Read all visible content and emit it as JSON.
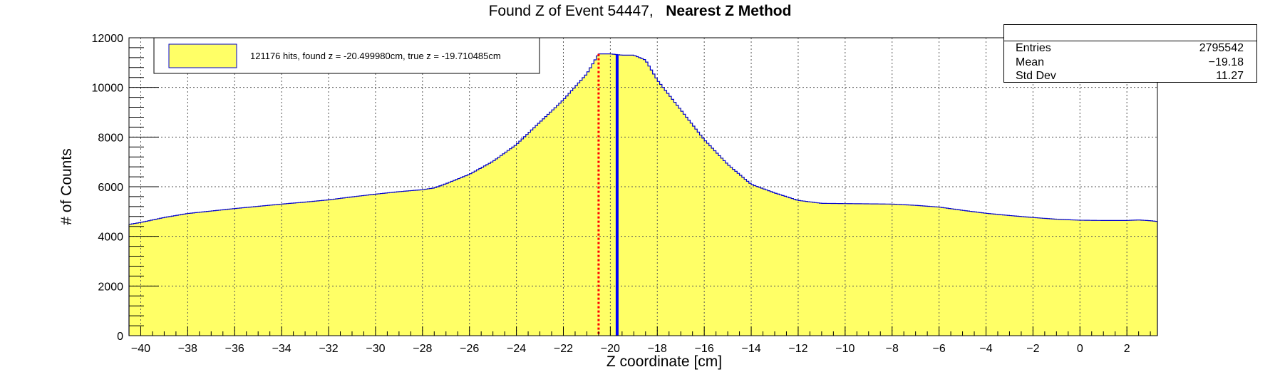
{
  "title": {
    "main": "Found Z of Event 54447,",
    "method": "Nearest Z Method"
  },
  "stats": {
    "rows": [
      {
        "label": "Entries",
        "value": "2795542"
      },
      {
        "label": "Mean",
        "value": "−19.18"
      },
      {
        "label": "Std Dev",
        "value": "11.27"
      }
    ]
  },
  "legend": {
    "label": "121176 hits, found z = -20.499980cm, true z = -19.710485cm"
  },
  "colors": {
    "fill": "#ffff66",
    "outline": "#0000cc",
    "found_line": "#ff0000",
    "true_line": "#0000ff"
  },
  "chart_data": {
    "type": "histogram",
    "xlabel": "Z coordinate [cm]",
    "ylabel": "# of Counts",
    "xlim": [
      -40.5,
      3.3
    ],
    "ylim": [
      0,
      12000
    ],
    "x_ticks": [
      -40,
      -38,
      -36,
      -34,
      -32,
      -30,
      -28,
      -26,
      -24,
      -22,
      -20,
      -18,
      -16,
      -14,
      -12,
      -10,
      -8,
      -6,
      -4,
      -2,
      0,
      2
    ],
    "y_ticks": [
      0,
      2000,
      4000,
      6000,
      8000,
      10000,
      12000
    ],
    "grid": true,
    "found_z": -20.49998,
    "true_z": -19.710485,
    "profile": {
      "x": [
        -40.5,
        -40.0,
        -39.0,
        -38.0,
        -37.0,
        -36.0,
        -35.0,
        -34.0,
        -33.0,
        -32.0,
        -31.0,
        -30.0,
        -29.0,
        -28.0,
        -27.5,
        -27.0,
        -26.0,
        -25.0,
        -24.0,
        -23.0,
        -22.0,
        -21.0,
        -20.5,
        -20.0,
        -19.5,
        -19.0,
        -18.5,
        -18.0,
        -17.0,
        -16.0,
        -15.0,
        -14.0,
        -13.0,
        -12.0,
        -11.0,
        -10.0,
        -9.0,
        -8.0,
        -7.0,
        -6.0,
        -5.0,
        -4.0,
        -3.0,
        -2.0,
        -1.0,
        0.0,
        1.0,
        2.0,
        2.5,
        3.0,
        3.3
      ],
      "y": [
        4480,
        4560,
        4760,
        4920,
        5020,
        5120,
        5210,
        5300,
        5380,
        5470,
        5590,
        5700,
        5800,
        5880,
        5950,
        6120,
        6500,
        7020,
        7700,
        8600,
        9500,
        10550,
        11350,
        11350,
        11300,
        11300,
        11100,
        10300,
        9100,
        7900,
        6900,
        6100,
        5750,
        5450,
        5330,
        5320,
        5310,
        5300,
        5250,
        5180,
        5050,
        4930,
        4840,
        4760,
        4690,
        4650,
        4640,
        4640,
        4660,
        4630,
        4600
      ]
    }
  }
}
